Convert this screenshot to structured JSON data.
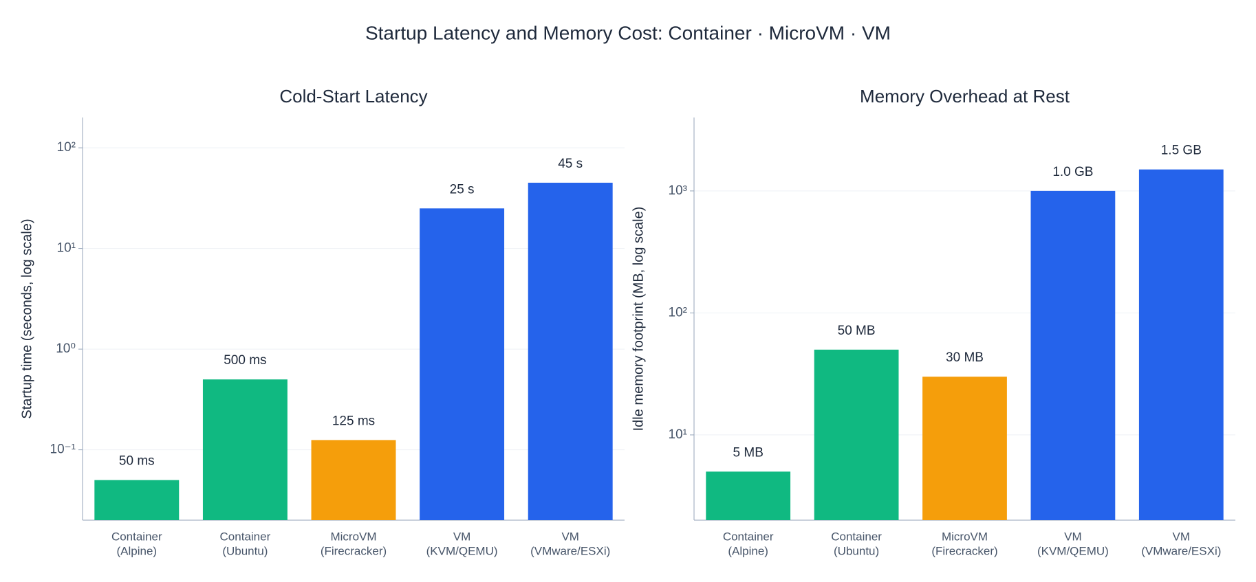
{
  "title": "Startup Latency and Memory Cost: Container · MicroVM · VM",
  "chart_data": [
    {
      "type": "bar",
      "title": "Cold-Start Latency",
      "y_label": "Startup time  (seconds, log scale)",
      "categories": [
        [
          "Container",
          "(Alpine)"
        ],
        [
          "Container",
          "(Ubuntu)"
        ],
        [
          "MicroVM",
          "(Firecracker)"
        ],
        [
          "VM",
          "(KVM/QEMU)"
        ],
        [
          "VM",
          "(VMware/ESXi)"
        ]
      ],
      "values": [
        0.05,
        0.5,
        0.125,
        25,
        45
      ],
      "value_labels": [
        "50 ms",
        "500 ms",
        "125 ms",
        "25 s",
        "45 s"
      ],
      "colors": [
        "#10b981",
        "#10b981",
        "#f59e0b",
        "#2563eb",
        "#2563eb"
      ],
      "log_scale": true,
      "grid": true,
      "ylim": [
        0.02,
        200
      ],
      "yticks": [
        {
          "value": 0.1,
          "label": "10⁻¹"
        },
        {
          "value": 1,
          "label": "10⁰"
        },
        {
          "value": 10,
          "label": "10¹"
        },
        {
          "value": 100,
          "label": "10²"
        }
      ]
    },
    {
      "type": "bar",
      "title": "Memory Overhead at Rest",
      "y_label": "Idle memory footprint  (MB, log scale)",
      "categories": [
        [
          "Container",
          "(Alpine)"
        ],
        [
          "Container",
          "(Ubuntu)"
        ],
        [
          "MicroVM",
          "(Firecracker)"
        ],
        [
          "VM",
          "(KVM/QEMU)"
        ],
        [
          "VM",
          "(VMware/ESXi)"
        ]
      ],
      "values": [
        5,
        50,
        30,
        1000,
        1500
      ],
      "value_labels": [
        "5 MB",
        "50 MB",
        "30 MB",
        "1.0 GB",
        "1.5 GB"
      ],
      "colors": [
        "#10b981",
        "#10b981",
        "#f59e0b",
        "#2563eb",
        "#2563eb"
      ],
      "log_scale": true,
      "grid": true,
      "ylim": [
        2,
        4000
      ],
      "yticks": [
        {
          "value": 10,
          "label": "10¹"
        },
        {
          "value": 100,
          "label": "10²"
        },
        {
          "value": 1000,
          "label": "10³"
        }
      ]
    }
  ]
}
